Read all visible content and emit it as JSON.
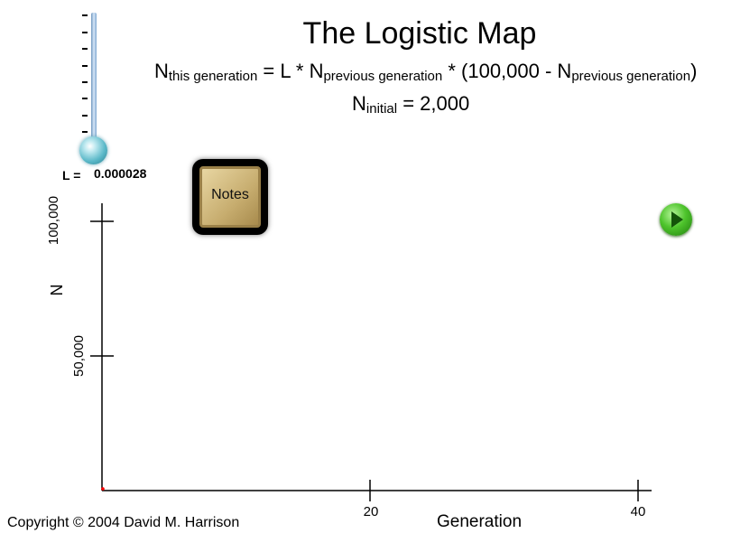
{
  "header": {
    "title": "The Logistic Map",
    "formula": {
      "n": "N",
      "this_sub": "this generation",
      "eq": " = L * N",
      "prev_sub": "previous generation",
      "mid": " * (100,000 - N",
      "prev_sub2": "previous generation",
      "close": ")"
    },
    "initial": {
      "n": "N",
      "sub": "initial",
      "rest": " = 2,000"
    }
  },
  "slider": {
    "label": "L =",
    "value": "0.000028"
  },
  "buttons": {
    "notes_label": "Notes",
    "play_icon": "play-icon"
  },
  "chart_data": {
    "type": "line",
    "xlabel": "Generation",
    "ylabel": "N",
    "x_ticks": [
      "20",
      "40"
    ],
    "y_ticks": [
      "100,000",
      "50,000"
    ],
    "xlim": [
      0,
      41
    ],
    "ylim": [
      0,
      100000
    ],
    "series": [
      {
        "x": [
          0
        ],
        "y": [
          2000
        ],
        "color": "#ff0000"
      }
    ]
  },
  "footer": {
    "copyright": "Copyright © 2004 David M. Harrison"
  }
}
